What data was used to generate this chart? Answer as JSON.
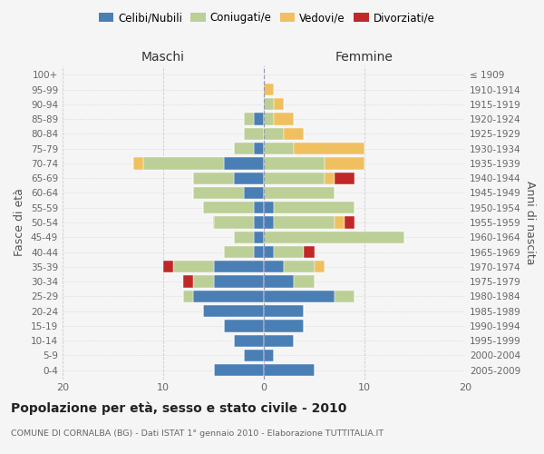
{
  "age_groups": [
    "0-4",
    "5-9",
    "10-14",
    "15-19",
    "20-24",
    "25-29",
    "30-34",
    "35-39",
    "40-44",
    "45-49",
    "50-54",
    "55-59",
    "60-64",
    "65-69",
    "70-74",
    "75-79",
    "80-84",
    "85-89",
    "90-94",
    "95-99",
    "100+"
  ],
  "birth_years": [
    "2005-2009",
    "2000-2004",
    "1995-1999",
    "1990-1994",
    "1985-1989",
    "1980-1984",
    "1975-1979",
    "1970-1974",
    "1965-1969",
    "1960-1964",
    "1955-1959",
    "1950-1954",
    "1945-1949",
    "1940-1944",
    "1935-1939",
    "1930-1934",
    "1925-1929",
    "1920-1924",
    "1915-1919",
    "1910-1914",
    "≤ 1909"
  ],
  "colors": {
    "celibi": "#4a7fb5",
    "coniugati": "#bccf96",
    "vedovi": "#f0c060",
    "divorziati": "#c02828"
  },
  "males_celibi": [
    5,
    2,
    3,
    4,
    6,
    7,
    5,
    5,
    1,
    1,
    1,
    1,
    2,
    3,
    4,
    1,
    0,
    1,
    0,
    0,
    0
  ],
  "males_coniugati": [
    0,
    0,
    0,
    0,
    0,
    1,
    2,
    4,
    3,
    2,
    4,
    5,
    5,
    4,
    8,
    2,
    2,
    1,
    0,
    0,
    0
  ],
  "males_vedovi": [
    0,
    0,
    0,
    0,
    0,
    0,
    0,
    0,
    0,
    0,
    0,
    0,
    0,
    0,
    1,
    0,
    0,
    0,
    0,
    0,
    0
  ],
  "males_divorziati": [
    0,
    0,
    0,
    0,
    0,
    0,
    1,
    1,
    0,
    0,
    0,
    0,
    0,
    0,
    0,
    0,
    0,
    0,
    0,
    0,
    0
  ],
  "females_celibi": [
    5,
    1,
    3,
    4,
    4,
    7,
    3,
    2,
    1,
    0,
    1,
    1,
    0,
    0,
    0,
    0,
    0,
    0,
    0,
    0,
    0
  ],
  "females_coniugati": [
    0,
    0,
    0,
    0,
    0,
    2,
    2,
    3,
    3,
    14,
    6,
    8,
    7,
    6,
    6,
    3,
    2,
    1,
    1,
    0,
    0
  ],
  "females_vedovi": [
    0,
    0,
    0,
    0,
    0,
    0,
    0,
    1,
    0,
    0,
    1,
    0,
    0,
    1,
    4,
    7,
    2,
    2,
    1,
    1,
    0
  ],
  "females_divorziati": [
    0,
    0,
    0,
    0,
    0,
    0,
    0,
    0,
    1,
    0,
    1,
    0,
    0,
    2,
    0,
    0,
    0,
    0,
    0,
    0,
    0
  ],
  "xlim": [
    -20,
    20
  ],
  "xticks": [
    -20,
    -10,
    0,
    10,
    20
  ],
  "xticklabels": [
    "20",
    "10",
    "0",
    "10",
    "20"
  ],
  "title": "Popolazione per età, sesso e stato civile - 2010",
  "subtitle": "COMUNE DI CORNALBA (BG) - Dati ISTAT 1° gennaio 2010 - Elaborazione TUTTITALIA.IT",
  "ylabel_left": "Fasce di età",
  "ylabel_right": "Anni di nascita",
  "label_maschi": "Maschi",
  "label_femmine": "Femmine",
  "legend_labels": [
    "Celibi/Nubili",
    "Coniugati/e",
    "Vedovi/e",
    "Divorziati/e"
  ],
  "bg_color": "#f5f5f5",
  "grid_color": "#cccccc"
}
